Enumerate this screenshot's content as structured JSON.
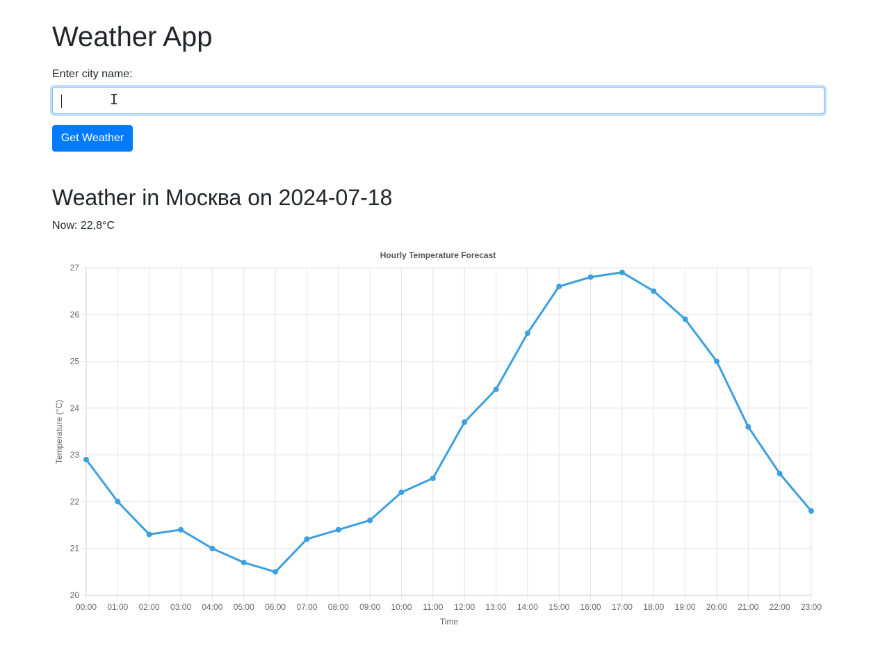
{
  "app": {
    "title": "Weather App"
  },
  "form": {
    "label": "Enter city name:",
    "city_value": "",
    "button_label": "Get Weather"
  },
  "weather": {
    "heading": "Weather in Москва on 2024-07-18",
    "now": "Now: 22,8°C"
  },
  "chart_data": {
    "type": "line",
    "title": "Hourly Temperature Forecast",
    "xlabel": "Time",
    "ylabel": "Temperature (°C)",
    "categories": [
      "00:00",
      "01:00",
      "02:00",
      "03:00",
      "04:00",
      "05:00",
      "06:00",
      "07:00",
      "08:00",
      "09:00",
      "10:00",
      "11:00",
      "12:00",
      "13:00",
      "14:00",
      "15:00",
      "16:00",
      "17:00",
      "18:00",
      "19:00",
      "20:00",
      "21:00",
      "22:00",
      "23:00"
    ],
    "values": [
      22.9,
      22.0,
      21.3,
      21.4,
      21.0,
      20.7,
      20.5,
      21.2,
      21.4,
      21.6,
      22.2,
      22.5,
      23.7,
      24.4,
      25.6,
      26.6,
      26.8,
      26.9,
      26.5,
      25.9,
      25.0,
      23.6,
      22.6,
      21.8
    ],
    "ylim": [
      20,
      27
    ],
    "yticks": [
      20,
      21,
      22,
      23,
      24,
      25,
      26,
      27
    ],
    "grid": true,
    "legend": "none",
    "line_color": "#3b9fe0"
  }
}
